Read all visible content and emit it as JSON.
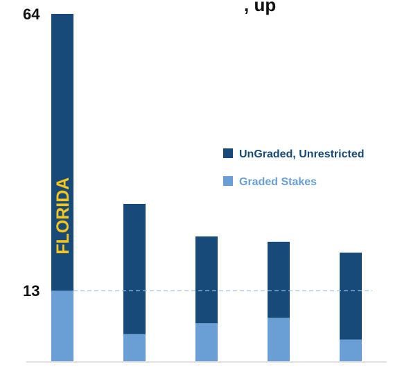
{
  "chart_data": {
    "type": "bar",
    "stacked": true,
    "title_visible_fragment": ", up",
    "categories": [
      "FLORIDA",
      "",
      "",
      "",
      ""
    ],
    "series": [
      {
        "name": "Graded Stakes",
        "values": [
          13,
          5,
          7,
          8,
          4
        ],
        "color": "#6a9fd6"
      },
      {
        "name": "UnGraded, Unrestricted",
        "values": [
          51,
          24,
          16,
          14,
          16
        ],
        "color": "#174a78"
      }
    ],
    "y_ticks": [
      13,
      64
    ],
    "ylim": [
      0,
      64
    ],
    "reference_line": {
      "value": 13,
      "style": "dashed",
      "color": "#9cc3e8"
    },
    "legend": [
      {
        "label": "UnGraded, Unrestricted",
        "color": "#174a78",
        "text_color": "#174a78"
      },
      {
        "label": "Graded Stakes",
        "color": "#6a9fd6",
        "text_color": "#6a9fd6"
      }
    ],
    "legend_position": "right",
    "bar_label_color": "#f5c518"
  }
}
